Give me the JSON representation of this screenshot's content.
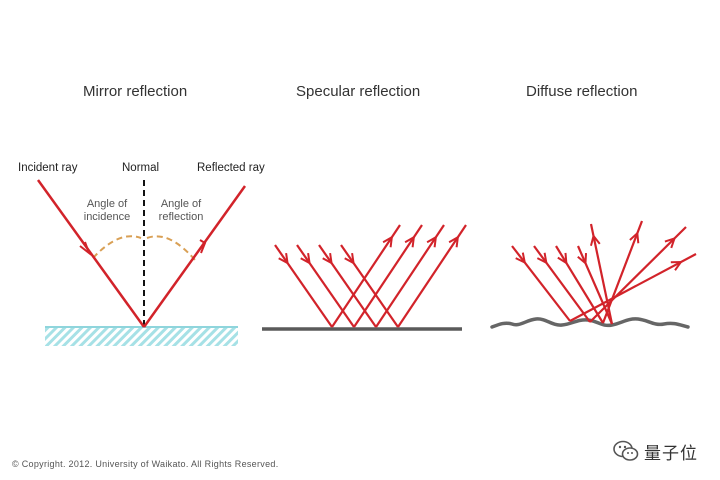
{
  "panels": [
    {
      "title": "Mirror reflection"
    },
    {
      "title": "Specular reflection"
    },
    {
      "title": "Diffuse reflection"
    }
  ],
  "mirror_labels": {
    "incident": "Incident ray",
    "normal": "Normal",
    "reflected": "Reflected ray",
    "angle_incidence_1": "Angle of",
    "angle_incidence_2": "incidence",
    "angle_reflection_1": "Angle of",
    "angle_reflection_2": "reflection"
  },
  "copyright": "© Copyright. 2012. University of Waikato. All Rights Reserved.",
  "watermark": {
    "text": "量子位",
    "icon": "wechat-icon"
  },
  "colors": {
    "ray": "#d2232a",
    "angle_arc": "#d9a055",
    "surface_mirror": "#a6e1e6",
    "surface_rough": "#666666"
  }
}
